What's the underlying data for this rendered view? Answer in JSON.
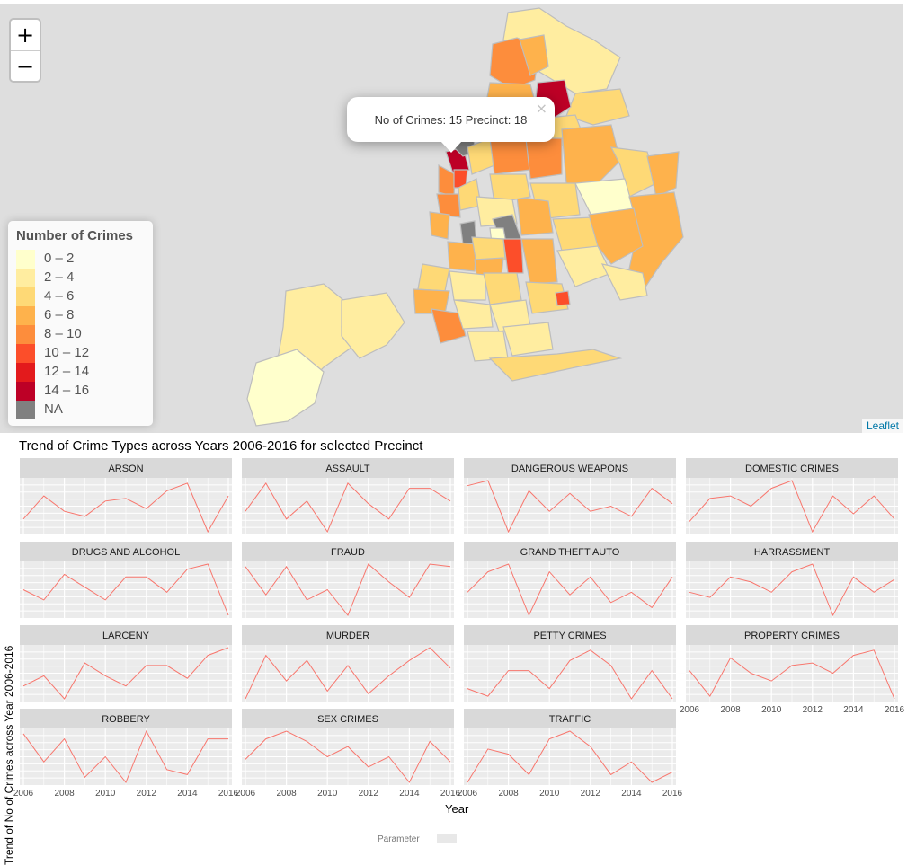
{
  "map": {
    "zoom_in_label": "+",
    "zoom_out_label": "−",
    "popup_text": "No of Crimes: 15 Precinct: 18",
    "popup_close": "×",
    "attribution": "Leaflet",
    "legend": {
      "title": "Number of Crimes",
      "items": [
        {
          "label": "0 – 2",
          "color": "#ffffcc"
        },
        {
          "label": "2 – 4",
          "color": "#ffeda0"
        },
        {
          "label": "4 – 6",
          "color": "#fed976"
        },
        {
          "label": "6 – 8",
          "color": "#feb24c"
        },
        {
          "label": "8 – 10",
          "color": "#fd8d3c"
        },
        {
          "label": "10 – 12",
          "color": "#fc4e2a"
        },
        {
          "label": "12 – 14",
          "color": "#e31a1c"
        },
        {
          "label": "14 – 16",
          "color": "#bd0026"
        },
        {
          "label": "NA",
          "color": "#808080"
        }
      ]
    }
  },
  "chart_data": {
    "type": "line",
    "title": "Trend of Crime Types across Years 2006-2016 for selected Precinct",
    "xlabel": "Year",
    "ylabel": "Trend of No of Crimes across Year 2006-2016",
    "x": [
      2006,
      2007,
      2008,
      2009,
      2010,
      2011,
      2012,
      2013,
      2014,
      2015,
      2016
    ],
    "x_ticks": [
      2006,
      2008,
      2010,
      2012,
      2014,
      2016
    ],
    "y_relative_range": [
      0,
      1
    ],
    "line_color": "#f8766d",
    "panel_background": "#ebebeb",
    "strip_background": "#d9d9d9",
    "grid": true,
    "legend_title": "Parameter",
    "facets": [
      {
        "name": "ARSON",
        "values": [
          0.25,
          0.7,
          0.4,
          0.3,
          0.6,
          0.65,
          0.45,
          0.8,
          0.95,
          0.0,
          0.7
        ]
      },
      {
        "name": "ASSAULT",
        "values": [
          0.4,
          0.95,
          0.25,
          0.6,
          0.0,
          0.95,
          0.55,
          0.25,
          0.85,
          0.85,
          0.6
        ]
      },
      {
        "name": "DANGEROUS WEAPONS",
        "values": [
          0.9,
          1.0,
          0.0,
          0.8,
          0.4,
          0.75,
          0.4,
          0.5,
          0.3,
          0.85,
          0.55
        ]
      },
      {
        "name": "DOMESTIC CRIMES",
        "values": [
          0.2,
          0.65,
          0.7,
          0.5,
          0.85,
          1.0,
          0.0,
          0.7,
          0.35,
          0.7,
          0.25
        ]
      },
      {
        "name": "DRUGS AND ALCOHOL",
        "values": [
          0.5,
          0.3,
          0.8,
          0.55,
          0.3,
          0.75,
          0.75,
          0.45,
          0.9,
          1.0,
          0.0
        ]
      },
      {
        "name": "FRAUD",
        "values": [
          0.95,
          0.4,
          0.95,
          0.3,
          0.5,
          0.0,
          1.0,
          0.65,
          0.35,
          1.0,
          0.95
        ]
      },
      {
        "name": "GRAND THEFT AUTO",
        "values": [
          0.45,
          0.85,
          1.0,
          0.0,
          0.85,
          0.4,
          0.75,
          0.25,
          0.45,
          0.15,
          0.75
        ]
      },
      {
        "name": "HARRASSMENT",
        "values": [
          0.45,
          0.35,
          0.75,
          0.65,
          0.45,
          0.85,
          1.0,
          0.0,
          0.75,
          0.45,
          0.7
        ]
      },
      {
        "name": "LARCENY",
        "values": [
          0.25,
          0.45,
          0.0,
          0.7,
          0.45,
          0.25,
          0.65,
          0.65,
          0.4,
          0.85,
          1.0
        ]
      },
      {
        "name": "MURDER",
        "values": [
          0.0,
          0.85,
          0.35,
          0.75,
          0.15,
          0.65,
          0.1,
          0.45,
          0.75,
          1.0,
          0.6
        ]
      },
      {
        "name": "PETTY CRIMES",
        "values": [
          0.2,
          0.05,
          0.55,
          0.55,
          0.2,
          0.75,
          0.95,
          0.65,
          0.0,
          0.55,
          0.0
        ]
      },
      {
        "name": "PROPERTY CRIMES",
        "values": [
          0.55,
          0.05,
          0.8,
          0.5,
          0.35,
          0.65,
          0.7,
          0.5,
          0.85,
          0.95,
          0.0
        ]
      },
      {
        "name": "ROBBERY",
        "values": [
          0.95,
          0.4,
          0.85,
          0.1,
          0.5,
          0.0,
          1.0,
          0.25,
          0.15,
          0.85,
          0.85
        ]
      },
      {
        "name": "SEX CRIMES",
        "values": [
          0.45,
          0.85,
          1.0,
          0.8,
          0.5,
          0.7,
          0.3,
          0.5,
          0.0,
          0.8,
          0.4
        ]
      },
      {
        "name": "TRAFFIC",
        "values": [
          0.0,
          0.65,
          0.55,
          0.15,
          0.85,
          1.0,
          0.7,
          0.15,
          0.4,
          0.0,
          0.2
        ]
      }
    ]
  }
}
